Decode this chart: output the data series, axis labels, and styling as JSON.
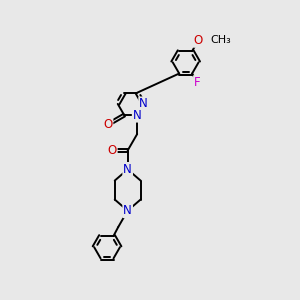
{
  "bg_color": "#e8e8e8",
  "bond_color": "#000000",
  "N_color": "#0000cc",
  "O_color": "#cc0000",
  "F_color": "#cc00cc",
  "lw": 1.4,
  "dbo": 0.055,
  "fs": 8.5,
  "xlim": [
    0.0,
    7.5
  ],
  "ylim": [
    0.5,
    10.5
  ]
}
